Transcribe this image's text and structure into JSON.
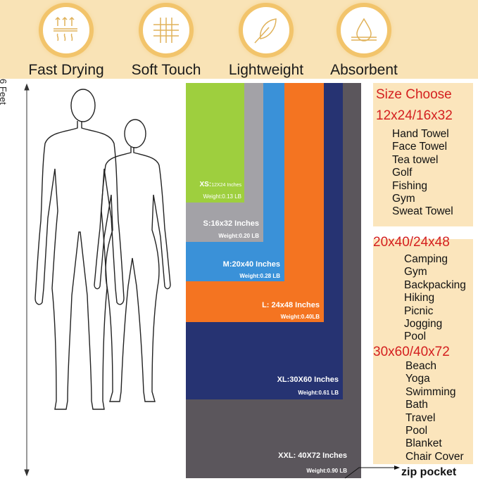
{
  "features": [
    {
      "label": "Fast Drying",
      "icon": "heat-waves-icon"
    },
    {
      "label": "Soft Touch",
      "icon": "fabric-weave-icon"
    },
    {
      "label": "Lightweight",
      "icon": "feather-icon"
    },
    {
      "label": "Absorbent",
      "icon": "water-drop-icon"
    }
  ],
  "height_label": "6 Feet",
  "sizes": [
    {
      "size": "XS:",
      "dims": "12X24 Inches",
      "weight": "Weight:0.13 LB",
      "color": "#9ecf3e"
    },
    {
      "size": "S:16x32 Inches",
      "weight": "Weight:0.20 LB",
      "color": "#a3a2a7"
    },
    {
      "size": "M:20x40 Inches",
      "weight": "Weight:0.28 LB",
      "color": "#3a91d8"
    },
    {
      "size": "L: 24x48 Inches",
      "weight": "Weight:0.40LB",
      "color": "#f47421"
    },
    {
      "size": "XL:30X60 Inches",
      "weight": "Weight:0.61 LB",
      "color": "#263372"
    },
    {
      "size": "XXL: 40X72 Inches",
      "weight": "Weight:0.90 LB",
      "color": "#5b565c"
    }
  ],
  "size_choose": "Size Choose",
  "groups": [
    {
      "heading": "12x24/16x32",
      "uses": [
        "Hand Towel",
        "Face Towel",
        "Tea towel",
        "Golf",
        "Fishing",
        "Gym",
        "Sweat Towel"
      ]
    },
    {
      "heading": "20x40/24x48",
      "uses": [
        "Camping",
        "Gym",
        "Backpacking",
        "Hiking",
        "Picnic",
        "Jogging",
        "Pool"
      ]
    },
    {
      "heading": "30x60/40x72",
      "uses": [
        "Beach",
        "Yoga",
        "Swimming",
        "Bath",
        "Travel",
        "Pool",
        "Blanket",
        "Chair Cover"
      ]
    }
  ],
  "zip_label": "zip pocket"
}
